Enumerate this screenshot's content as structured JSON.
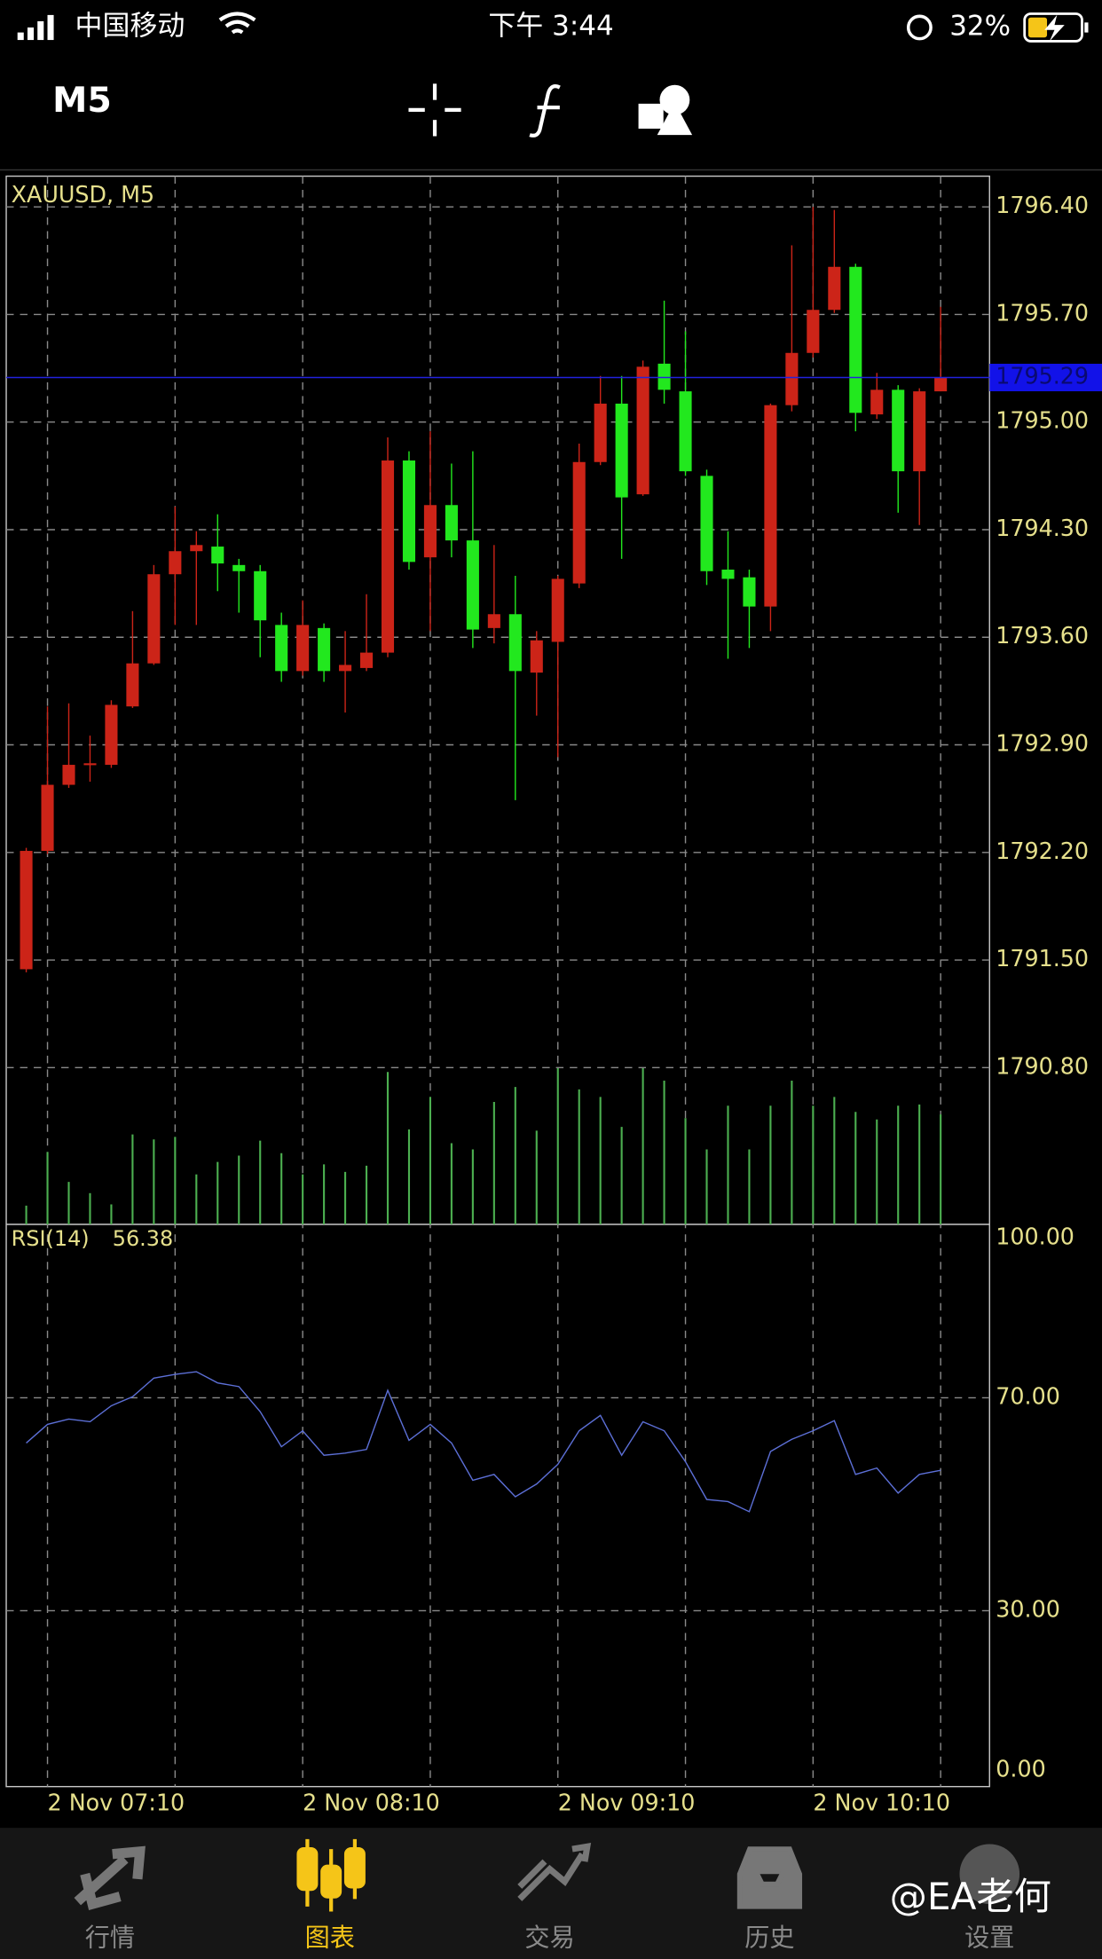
{
  "status_bar": {
    "carrier": "中国移动",
    "time": "下午 3:44",
    "battery": "32%"
  },
  "toolbar": {
    "timeframe": "M5"
  },
  "chart_data": {
    "type": "candlestick",
    "title": "XAUUSD, M5",
    "up_color": "#cc2418",
    "down_color": "#22e81e",
    "volume_color": "#4caf50",
    "open": [
      1791.44,
      1792.21,
      1792.64,
      1792.77,
      1792.77,
      1793.15,
      1793.43,
      1794.01,
      1794.16,
      1794.19,
      1794.07,
      1794.03,
      1793.68,
      1793.38,
      1793.66,
      1793.38,
      1793.4,
      1793.5,
      1794.75,
      1794.12,
      1794.46,
      1794.23,
      1793.66,
      1793.75,
      1793.37,
      1793.57,
      1793.95,
      1794.74,
      1795.12,
      1794.53,
      1795.38,
      1795.2,
      1794.65,
      1794.04,
      1793.99,
      1793.8,
      1795.11,
      1795.45,
      1795.73,
      1796.01,
      1795.05,
      1795.21,
      1794.68,
      1795.2
    ],
    "high": [
      1792.23,
      1793.15,
      1793.17,
      1792.96,
      1793.19,
      1793.77,
      1794.07,
      1794.45,
      1794.29,
      1794.4,
      1794.11,
      1794.07,
      1793.76,
      1793.84,
      1793.69,
      1793.64,
      1793.88,
      1794.9,
      1794.81,
      1794.94,
      1794.73,
      1794.81,
      1794.2,
      1794.0,
      1793.64,
      1794.0,
      1794.86,
      1795.3,
      1795.3,
      1795.4,
      1795.79,
      1795.59,
      1794.69,
      1794.29,
      1794.04,
      1795.12,
      1796.15,
      1796.4,
      1796.38,
      1796.03,
      1795.32,
      1795.24,
      1795.22,
      1795.75
    ],
    "low": [
      1791.42,
      1792.19,
      1792.62,
      1792.66,
      1792.75,
      1793.14,
      1793.42,
      1793.68,
      1793.68,
      1793.9,
      1793.76,
      1793.47,
      1793.31,
      1793.35,
      1793.31,
      1793.11,
      1793.38,
      1793.47,
      1794.04,
      1793.64,
      1794.12,
      1793.53,
      1793.56,
      1792.54,
      1793.09,
      1792.82,
      1793.92,
      1794.72,
      1794.11,
      1794.52,
      1795.12,
      1794.65,
      1793.94,
      1793.46,
      1793.53,
      1793.64,
      1795.07,
      1795.42,
      1795.71,
      1794.94,
      1795.02,
      1794.41,
      1794.33,
      1795.2
    ],
    "close": [
      1792.21,
      1792.64,
      1792.77,
      1792.78,
      1793.16,
      1793.43,
      1794.01,
      1794.16,
      1794.2,
      1794.08,
      1794.03,
      1793.71,
      1793.38,
      1793.68,
      1793.38,
      1793.42,
      1793.5,
      1794.75,
      1794.09,
      1794.46,
      1794.23,
      1793.65,
      1793.75,
      1793.38,
      1793.58,
      1793.98,
      1794.74,
      1795.12,
      1794.51,
      1795.36,
      1795.21,
      1794.68,
      1794.03,
      1793.98,
      1793.8,
      1795.11,
      1795.45,
      1795.73,
      1796.01,
      1795.06,
      1795.21,
      1794.68,
      1795.2,
      1795.29
    ],
    "volume": [
      15,
      58,
      34,
      25,
      16,
      72,
      68,
      70,
      40,
      50,
      55,
      67,
      57,
      40,
      48,
      42,
      47,
      122,
      76,
      102,
      65,
      60,
      98,
      110,
      75,
      125,
      108,
      102,
      78,
      125,
      115,
      85,
      60,
      95,
      60,
      95,
      115,
      95,
      102,
      90,
      84,
      95,
      96,
      88
    ],
    "ylim": [
      1789.78,
      1796.6
    ],
    "yticks": [
      {
        "value": 1796.4,
        "label": "1796.40"
      },
      {
        "value": 1795.7,
        "label": "1795.70"
      },
      {
        "value": 1795.0,
        "label": "1795.00"
      },
      {
        "value": 1794.3,
        "label": "1794.30"
      },
      {
        "value": 1793.6,
        "label": "1793.60"
      },
      {
        "value": 1792.9,
        "label": "1792.90"
      },
      {
        "value": 1792.2,
        "label": "1792.20"
      },
      {
        "value": 1791.5,
        "label": "1791.50"
      },
      {
        "value": 1790.8,
        "label": "1790.80"
      }
    ],
    "x_labels": [
      "2 Nov 07:10",
      "2 Nov 08:10",
      "2 Nov 09:10",
      "2 Nov 10:10"
    ],
    "grid": true,
    "rsi": {
      "title": "RSI(14)",
      "color": "#5c6fd6",
      "values": [
        61.5,
        65.0,
        66.0,
        65.5,
        68.5,
        70.2,
        73.7,
        74.4,
        74.9,
        72.8,
        72.1,
        67.4,
        60.8,
        63.8,
        59.2,
        59.6,
        60.3,
        71.4,
        62.0,
        65.0,
        61.5,
        54.5,
        55.6,
        51.4,
        53.8,
        57.5,
        63.8,
        66.7,
        59.2,
        65.5,
        63.8,
        58.0,
        50.9,
        50.5,
        48.6,
        59.9,
        62.2,
        63.8,
        65.7,
        55.6,
        56.8,
        52.1,
        55.6,
        56.38
      ],
      "ylim": [
        0,
        100
      ],
      "yticks": [
        {
          "value": 100,
          "label": "100.00"
        },
        {
          "value": 70,
          "label": "70.00"
        },
        {
          "value": 30,
          "label": "30.00"
        },
        {
          "value": 0,
          "label": "0.00"
        }
      ]
    }
  },
  "tab_bar": {
    "tabs": [
      "行情",
      "图表",
      "交易",
      "历史",
      "设置"
    ]
  },
  "watermark": "@EA老何"
}
